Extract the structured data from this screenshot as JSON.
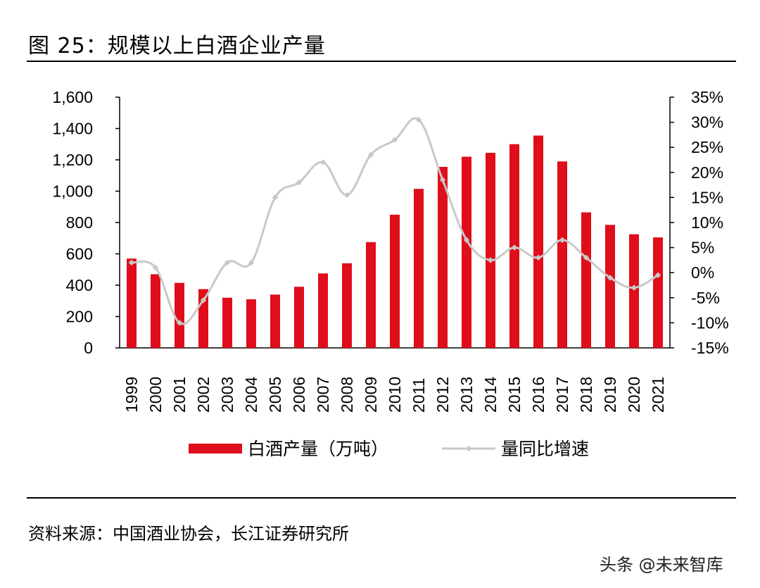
{
  "figure": {
    "title": "图 25：规模以上白酒企业产量",
    "source": "资料来源：中国酒业协会，长江证券研究所",
    "watermark": "头条 @未来智库"
  },
  "colors": {
    "bar": "#e00d1b",
    "line": "#c8c8c8",
    "axis": "#000000"
  },
  "chart_data": {
    "type": "bar+line",
    "title": "规模以上白酒企业产量",
    "categories": [
      "1999",
      "2000",
      "2001",
      "2002",
      "2003",
      "2004",
      "2005",
      "2006",
      "2007",
      "2008",
      "2009",
      "2010",
      "2011",
      "2012",
      "2013",
      "2014",
      "2015",
      "2016",
      "2017",
      "2018",
      "2019",
      "2020",
      "2021"
    ],
    "series": [
      {
        "name": "白酒产量（万吨）",
        "type": "bar",
        "axis": "left",
        "values": [
          570,
          470,
          415,
          375,
          320,
          310,
          340,
          390,
          475,
          540,
          675,
          850,
          1015,
          1155,
          1220,
          1245,
          1300,
          1355,
          1190,
          865,
          785,
          725,
          705
        ]
      },
      {
        "name": "量同比增速",
        "type": "line",
        "axis": "right",
        "values": [
          2.0,
          1.0,
          -10.0,
          -5.5,
          2.0,
          2.0,
          15.0,
          18.0,
          22.0,
          15.5,
          23.5,
          26.5,
          30.5,
          18.5,
          6.5,
          2.5,
          5.0,
          3.0,
          6.5,
          3.0,
          -1.0,
          -3.0,
          -0.5
        ]
      }
    ],
    "y_left": {
      "min": 0,
      "max": 1600,
      "step": 200,
      "tick_labels": [
        "0",
        "200",
        "400",
        "600",
        "800",
        "1,000",
        "1,200",
        "1,400",
        "1,600"
      ]
    },
    "y_right": {
      "min": -15,
      "max": 35,
      "step": 5,
      "tick_labels": [
        "-15%",
        "-10%",
        "-5%",
        "0%",
        "5%",
        "10%",
        "15%",
        "20%",
        "25%",
        "30%",
        "35%"
      ]
    },
    "legend_position": "bottom"
  }
}
